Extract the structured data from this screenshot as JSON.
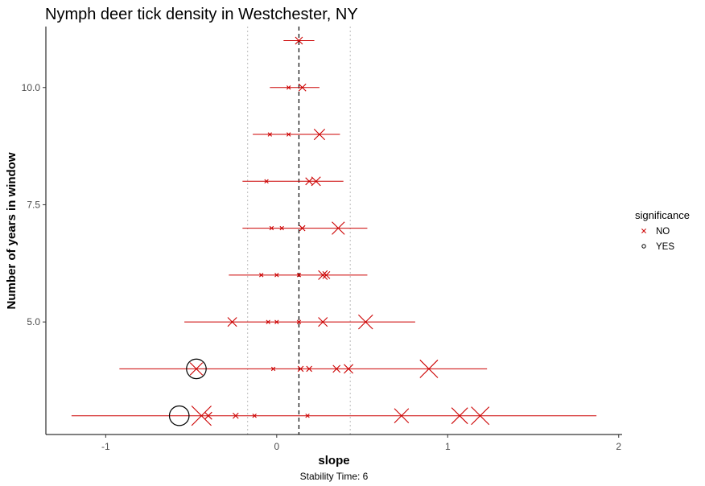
{
  "chart_data": {
    "type": "scatter",
    "title": "Nymph deer tick density in Westchester, NY",
    "xlabel": "slope",
    "ylabel": "Number of years in window",
    "caption": "Stability Time: 6",
    "xlim": [
      -1.35,
      2.02
    ],
    "ylim": [
      2.6,
      11.3
    ],
    "x_ticks": [
      {
        "value": -1,
        "label": "-1"
      },
      {
        "value": 0,
        "label": "0"
      },
      {
        "value": 1,
        "label": "1"
      },
      {
        "value": 2,
        "label": "2"
      }
    ],
    "y_ticks": [
      {
        "value": 5,
        "label": "5.0"
      },
      {
        "value": 7.5,
        "label": "7.5"
      },
      {
        "value": 10,
        "label": "10.0"
      }
    ],
    "reference_lines": {
      "mean": 0.13,
      "lower": -0.17,
      "upper": 0.43
    },
    "grid": false,
    "legend": {
      "title": "significance",
      "placement": "right",
      "entries": [
        {
          "label": "NO",
          "marker": "x",
          "color": "#cc0000"
        },
        {
          "label": "YES",
          "marker": "circle",
          "color": "#000000"
        }
      ]
    },
    "colors": {
      "no": "#cc0000",
      "yes": "#000000"
    },
    "ranges": [
      {
        "y": 11,
        "xmin": 0.04,
        "xmax": 0.22
      },
      {
        "y": 10,
        "xmin": -0.04,
        "xmax": 0.25
      },
      {
        "y": 9,
        "xmin": -0.14,
        "xmax": 0.37
      },
      {
        "y": 8,
        "xmin": -0.2,
        "xmax": 0.39
      },
      {
        "y": 7,
        "xmin": -0.2,
        "xmax": 0.53
      },
      {
        "y": 6,
        "xmin": -0.28,
        "xmax": 0.53
      },
      {
        "y": 5,
        "xmin": -0.54,
        "xmax": 0.81
      },
      {
        "y": 4,
        "xmin": -0.92,
        "xmax": 1.23
      },
      {
        "y": 3,
        "xmin": -1.2,
        "xmax": 1.87
      }
    ],
    "points": [
      {
        "y": 11,
        "x": 0.13,
        "size": 3,
        "significance": "NO"
      },
      {
        "y": 10,
        "x": 0.07,
        "size": 1,
        "significance": "NO"
      },
      {
        "y": 10,
        "x": 0.15,
        "size": 3,
        "significance": "NO"
      },
      {
        "y": 9,
        "x": -0.04,
        "size": 1,
        "significance": "NO"
      },
      {
        "y": 9,
        "x": 0.07,
        "size": 1,
        "significance": "NO"
      },
      {
        "y": 9,
        "x": 0.25,
        "size": 5,
        "significance": "NO"
      },
      {
        "y": 8,
        "x": -0.06,
        "size": 1,
        "significance": "NO"
      },
      {
        "y": 8,
        "x": 0.19,
        "size": 3,
        "significance": "NO"
      },
      {
        "y": 8,
        "x": 0.23,
        "size": 4,
        "significance": "NO"
      },
      {
        "y": 7,
        "x": -0.03,
        "size": 1,
        "significance": "NO"
      },
      {
        "y": 7,
        "x": 0.03,
        "size": 1,
        "significance": "NO"
      },
      {
        "y": 7,
        "x": 0.15,
        "size": 2,
        "significance": "NO"
      },
      {
        "y": 7,
        "x": 0.36,
        "size": 6,
        "significance": "NO"
      },
      {
        "y": 6,
        "x": -0.09,
        "size": 1,
        "significance": "NO"
      },
      {
        "y": 6,
        "x": 0.0,
        "size": 1,
        "significance": "NO"
      },
      {
        "y": 6,
        "x": 0.13,
        "size": 1,
        "significance": "NO"
      },
      {
        "y": 6,
        "x": 0.27,
        "size": 4,
        "significance": "NO"
      },
      {
        "y": 6,
        "x": 0.29,
        "size": 3,
        "significance": "NO"
      },
      {
        "y": 5,
        "x": -0.26,
        "size": 4,
        "significance": "NO"
      },
      {
        "y": 5,
        "x": -0.05,
        "size": 1,
        "significance": "NO"
      },
      {
        "y": 5,
        "x": 0.0,
        "size": 1,
        "significance": "NO"
      },
      {
        "y": 5,
        "x": 0.13,
        "size": 1,
        "significance": "NO"
      },
      {
        "y": 5,
        "x": 0.27,
        "size": 4,
        "significance": "NO"
      },
      {
        "y": 5,
        "x": 0.52,
        "size": 7,
        "significance": "NO"
      },
      {
        "y": 4,
        "x": -0.47,
        "size": 6,
        "significance": "NO"
      },
      {
        "y": 4,
        "x": -0.47,
        "size": 10,
        "significance": "YES"
      },
      {
        "y": 4,
        "x": -0.02,
        "size": 1,
        "significance": "NO"
      },
      {
        "y": 4,
        "x": 0.14,
        "size": 2,
        "significance": "NO"
      },
      {
        "y": 4,
        "x": 0.19,
        "size": 2,
        "significance": "NO"
      },
      {
        "y": 4,
        "x": 0.35,
        "size": 3,
        "significance": "NO"
      },
      {
        "y": 4,
        "x": 0.42,
        "size": 4,
        "significance": "NO"
      },
      {
        "y": 4,
        "x": 0.89,
        "size": 9,
        "significance": "NO"
      },
      {
        "y": 3,
        "x": -0.57,
        "size": 10,
        "significance": "YES"
      },
      {
        "y": 3,
        "x": -0.44,
        "size": 10,
        "significance": "NO"
      },
      {
        "y": 3,
        "x": -0.4,
        "size": 3,
        "significance": "NO"
      },
      {
        "y": 3,
        "x": -0.24,
        "size": 2,
        "significance": "NO"
      },
      {
        "y": 3,
        "x": -0.13,
        "size": 1,
        "significance": "NO"
      },
      {
        "y": 3,
        "x": 0.18,
        "size": 1,
        "significance": "NO"
      },
      {
        "y": 3,
        "x": 0.73,
        "size": 7,
        "significance": "NO"
      },
      {
        "y": 3,
        "x": 1.07,
        "size": 8,
        "significance": "NO"
      },
      {
        "y": 3,
        "x": 1.19,
        "size": 9,
        "significance": "NO"
      }
    ]
  }
}
